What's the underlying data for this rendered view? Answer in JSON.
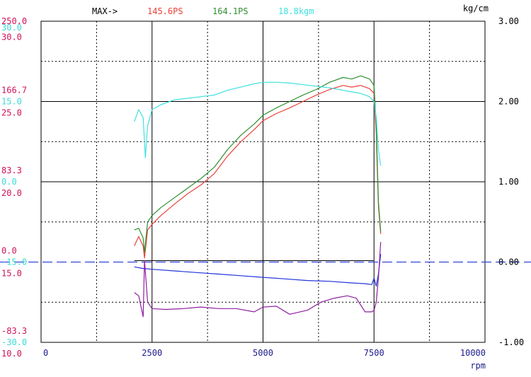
{
  "header": {
    "max_label": "MAX->",
    "max_values": [
      {
        "text": "145.6PS",
        "color": "#e8413a"
      },
      {
        "text": "164.1PS",
        "color": "#2f8f2f"
      },
      {
        "text": "18.8kgm",
        "color": "#40e0e0"
      }
    ],
    "right_unit": "kg/cm",
    "x_unit": "rpm"
  },
  "chart_data": {
    "type": "line",
    "x_axis": {
      "min": 0,
      "max": 10000,
      "ticks": [
        0,
        2500,
        5000,
        7500,
        10000
      ],
      "label": "rpm"
    },
    "right_axis": {
      "label": "kg/cm",
      "min": -1.0,
      "max": 3.0,
      "ticks": [
        "3.00",
        "2.00",
        "1.00",
        "0.00",
        "-1.00"
      ],
      "tick_values": [
        3,
        2,
        1,
        0,
        -1
      ]
    },
    "left_tick_labels": [
      {
        "text": "250.0",
        "color": "#d0105a",
        "level": 3.0
      },
      {
        "text": "30.0",
        "color": "#40d8d8",
        "level": 2.92
      },
      {
        "text": "30.0",
        "color": "#d0105a",
        "level": 2.8
      },
      {
        "text": "166.7",
        "color": "#d0105a",
        "level": 2.14
      },
      {
        "text": "15.0",
        "color": "#40d8d8",
        "level": 2.0
      },
      {
        "text": "25.0",
        "color": "#d0105a",
        "level": 1.86
      },
      {
        "text": "83.3",
        "color": "#d0105a",
        "level": 1.14
      },
      {
        "text": "0.0",
        "color": "#40d8d8",
        "level": 1.0
      },
      {
        "text": "20.0",
        "color": "#d0105a",
        "level": 0.86
      },
      {
        "text": "0.0",
        "color": "#d0105a",
        "level": 0.14
      },
      {
        "text": "-15.0",
        "color": "#40d8d8",
        "level": 0.0
      },
      {
        "text": "15.0",
        "color": "#d0105a",
        "level": -0.14
      },
      {
        "text": "-83.3",
        "color": "#d0105a",
        "level": -0.86
      },
      {
        "text": "-30.0",
        "color": "#40d8d8",
        "level": -1.0
      },
      {
        "text": "10.0",
        "color": "#d0105a",
        "level": -1.14
      }
    ],
    "grid": true,
    "zero_line": {
      "y": 0.0,
      "color": "#3344dd",
      "style": "dashed"
    },
    "series": [
      {
        "color": "#e8413a",
        "x": [
          2100,
          2200,
          2300,
          2330,
          2400,
          2500,
          2700,
          3000,
          3300,
          3600,
          3900,
          4200,
          4500,
          4800,
          5000,
          5300,
          5600,
          5900,
          6200,
          6500,
          6800,
          7000,
          7200,
          7400,
          7500,
          7550,
          7600,
          7650
        ],
        "y": [
          0.2,
          0.32,
          0.2,
          0.05,
          0.4,
          0.47,
          0.58,
          0.72,
          0.85,
          0.96,
          1.1,
          1.32,
          1.5,
          1.65,
          1.76,
          1.85,
          1.92,
          2.0,
          2.08,
          2.15,
          2.2,
          2.18,
          2.2,
          2.16,
          2.1,
          1.6,
          0.7,
          0.35
        ]
      },
      {
        "color": "#2f8f2f",
        "x": [
          2100,
          2200,
          2300,
          2330,
          2400,
          2500,
          2700,
          3000,
          3300,
          3600,
          3900,
          4200,
          4500,
          4800,
          5000,
          5300,
          5600,
          5900,
          6200,
          6500,
          6800,
          7000,
          7200,
          7400,
          7500,
          7550,
          7600,
          7650
        ],
        "y": [
          0.4,
          0.42,
          0.3,
          0.12,
          0.5,
          0.58,
          0.68,
          0.8,
          0.92,
          1.04,
          1.18,
          1.4,
          1.58,
          1.72,
          1.83,
          1.92,
          2.0,
          2.08,
          2.15,
          2.24,
          2.3,
          2.28,
          2.32,
          2.28,
          2.2,
          1.7,
          0.75,
          0.38
        ]
      },
      {
        "color": "#40e0e0",
        "x": [
          2100,
          2200,
          2300,
          2350,
          2400,
          2500,
          2700,
          3000,
          3300,
          3600,
          3900,
          4200,
          4500,
          4800,
          5000,
          5300,
          5600,
          5900,
          6200,
          6500,
          6800,
          7000,
          7200,
          7400,
          7500,
          7550,
          7600,
          7650
        ],
        "y": [
          1.75,
          1.9,
          1.8,
          1.3,
          1.7,
          1.9,
          1.96,
          2.02,
          2.04,
          2.06,
          2.08,
          2.14,
          2.18,
          2.22,
          2.24,
          2.24,
          2.23,
          2.21,
          2.19,
          2.17,
          2.14,
          2.12,
          2.1,
          2.06,
          2.0,
          1.8,
          1.4,
          1.2
        ]
      },
      {
        "color": "#2233dd",
        "x": [
          2100,
          2300,
          2500,
          3000,
          3500,
          4000,
          4500,
          5000,
          5500,
          6000,
          6500,
          7000,
          7300,
          7450,
          7500,
          7550,
          7600,
          7650
        ],
        "y": [
          -0.06,
          -0.08,
          -0.09,
          -0.11,
          -0.13,
          -0.15,
          -0.17,
          -0.19,
          -0.21,
          -0.23,
          -0.24,
          -0.26,
          -0.27,
          -0.28,
          -0.2,
          -0.3,
          -0.15,
          0.1
        ]
      },
      {
        "color": "#8e1ea0",
        "x": [
          2100,
          2200,
          2300,
          2330,
          2400,
          2500,
          2800,
          3200,
          3600,
          4000,
          4400,
          4800,
          5000,
          5300,
          5600,
          6000,
          6300,
          6600,
          6900,
          7100,
          7300,
          7450,
          7500,
          7550,
          7600,
          7650
        ],
        "y": [
          -0.38,
          -0.42,
          -0.68,
          0.02,
          -0.5,
          -0.58,
          -0.59,
          -0.58,
          -0.56,
          -0.58,
          -0.58,
          -0.62,
          -0.56,
          -0.55,
          -0.65,
          -0.6,
          -0.5,
          -0.45,
          -0.42,
          -0.45,
          -0.62,
          -0.62,
          -0.6,
          -0.5,
          -0.2,
          0.25
        ]
      }
    ]
  }
}
